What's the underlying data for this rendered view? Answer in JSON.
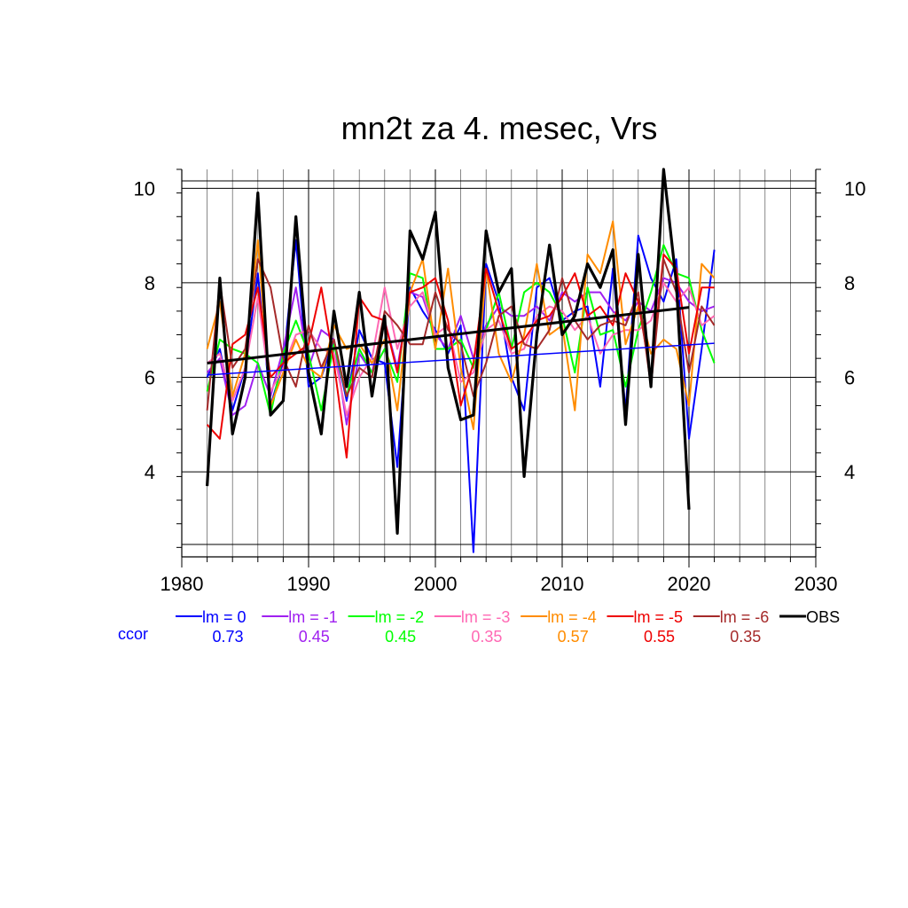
{
  "chart_data": {
    "type": "line",
    "title": "mn2t za 4. mesec, Vrs",
    "xlim": [
      1980,
      2030
    ],
    "ylim": [
      2.2,
      10.4
    ],
    "x_ticks": [
      1980,
      1990,
      2000,
      2010,
      2020,
      2030
    ],
    "y_ticks": [
      4,
      6,
      8,
      10
    ],
    "grid": true,
    "legend_placement": "bottom",
    "ccor_label": "ccor",
    "series": [
      {
        "name": "lm = 0",
        "ccor": "0.73",
        "color": "#0000ff",
        "x": [
          1982,
          1983,
          1984,
          1985,
          1986,
          1987,
          1988,
          1989,
          1990,
          1991,
          1992,
          1993,
          1994,
          1995,
          1996,
          1997,
          1998,
          1999,
          2000,
          2001,
          2002,
          2003,
          2004,
          2005,
          2006,
          2007,
          2008,
          2009,
          2010,
          2011,
          2012,
          2013,
          2014,
          2015,
          2016,
          2017,
          2018,
          2019,
          2020,
          2021,
          2022
        ],
        "y": [
          6.0,
          6.6,
          5.3,
          6.2,
          8.2,
          5.4,
          6.3,
          8.9,
          5.8,
          6.0,
          6.8,
          5.5,
          7.0,
          6.4,
          6.3,
          4.1,
          7.9,
          7.4,
          7.0,
          6.5,
          7.1,
          2.3,
          8.4,
          7.6,
          6.0,
          5.3,
          7.9,
          8.1,
          7.2,
          7.4,
          7.5,
          5.8,
          8.3,
          5.3,
          9.0,
          8.1,
          7.6,
          8.5,
          4.7,
          6.6,
          8.7
        ]
      },
      {
        "name": "lm = -1",
        "ccor": "0.45",
        "color": "#a020f0",
        "x": [
          1982,
          1983,
          1984,
          1985,
          1986,
          1987,
          1988,
          1989,
          1990,
          1991,
          1992,
          1993,
          1994,
          1995,
          1996,
          1997,
          1998,
          1999,
          2000,
          2001,
          2002,
          2003,
          2004,
          2005,
          2006,
          2007,
          2008,
          2009,
          2010,
          2011,
          2012,
          2013,
          2014,
          2015,
          2016,
          2017,
          2018,
          2019,
          2020,
          2021,
          2022
        ],
        "y": [
          6.1,
          6.4,
          5.2,
          5.4,
          6.3,
          5.6,
          6.6,
          7.9,
          6.2,
          7.0,
          6.8,
          5.0,
          6.5,
          6.1,
          7.2,
          6.2,
          7.8,
          7.7,
          6.9,
          6.6,
          7.3,
          6.4,
          7.1,
          7.5,
          7.3,
          7.3,
          7.5,
          7.2,
          7.8,
          7.6,
          7.8,
          7.8,
          7.4,
          7.2,
          7.6,
          7.4,
          8.1,
          8.0,
          7.6,
          7.4,
          7.5
        ]
      },
      {
        "name": "lm = -2",
        "ccor": "0.45",
        "color": "#00ff00",
        "x": [
          1982,
          1983,
          1984,
          1985,
          1986,
          1987,
          1988,
          1989,
          1990,
          1991,
          1992,
          1993,
          1994,
          1995,
          1996,
          1997,
          1998,
          1999,
          2000,
          2001,
          2002,
          2003,
          2004,
          2005,
          2006,
          2007,
          2008,
          2009,
          2010,
          2011,
          2012,
          2013,
          2014,
          2015,
          2016,
          2017,
          2018,
          2019,
          2020,
          2021,
          2022
        ],
        "y": [
          5.7,
          6.8,
          6.6,
          6.5,
          6.3,
          5.2,
          6.5,
          7.2,
          6.5,
          5.3,
          6.7,
          5.6,
          6.6,
          6.1,
          6.6,
          5.9,
          8.2,
          8.1,
          6.6,
          6.6,
          6.8,
          6.2,
          7.0,
          7.8,
          6.6,
          7.8,
          8.0,
          7.8,
          7.3,
          6.1,
          7.9,
          6.9,
          7.0,
          5.8,
          7.0,
          7.8,
          8.8,
          8.2,
          8.1,
          7.0,
          6.3
        ]
      },
      {
        "name": "lm = -3",
        "ccor": "0.35",
        "color": "#ff69b4",
        "x": [
          1982,
          1983,
          1984,
          1985,
          1986,
          1987,
          1988,
          1989,
          1990,
          1991,
          1992,
          1993,
          1994,
          1995,
          1996,
          1997,
          1998,
          1999,
          2000,
          2001,
          2002,
          2003,
          2004,
          2005,
          2006,
          2007,
          2008,
          2009,
          2010,
          2011,
          2012,
          2013,
          2014,
          2015,
          2016,
          2017,
          2018,
          2019,
          2020,
          2021,
          2022
        ],
        "y": [
          6.3,
          6.5,
          5.5,
          6.2,
          7.7,
          5.7,
          6.2,
          6.9,
          7.0,
          6.6,
          6.5,
          5.2,
          6.0,
          6.4,
          7.9,
          6.6,
          7.5,
          7.8,
          6.9,
          7.1,
          5.9,
          6.1,
          7.0,
          7.2,
          6.5,
          6.6,
          7.3,
          7.5,
          7.4,
          7.0,
          7.3,
          6.5,
          6.9,
          7.0,
          7.0,
          7.2,
          8.0,
          7.6,
          7.9,
          7.1,
          7.3
        ]
      },
      {
        "name": "lm = -4",
        "ccor": "0.57",
        "color": "#ff8c00",
        "x": [
          1982,
          1983,
          1984,
          1985,
          1986,
          1987,
          1988,
          1989,
          1990,
          1991,
          1992,
          1993,
          1994,
          1995,
          1996,
          1997,
          1998,
          1999,
          2000,
          2001,
          2002,
          2003,
          2004,
          2005,
          2006,
          2007,
          2008,
          2009,
          2010,
          2011,
          2012,
          2013,
          2014,
          2015,
          2016,
          2017,
          2018,
          2019,
          2020,
          2021,
          2022
        ],
        "y": [
          6.6,
          7.6,
          5.6,
          6.5,
          8.9,
          5.4,
          6.1,
          6.8,
          6.2,
          6.0,
          7.1,
          6.6,
          6.7,
          6.3,
          6.8,
          5.3,
          7.8,
          8.5,
          6.6,
          8.3,
          6.2,
          4.9,
          8.3,
          6.5,
          5.9,
          6.9,
          8.4,
          6.9,
          7.1,
          5.3,
          8.6,
          8.2,
          9.3,
          6.7,
          7.5,
          6.5,
          6.8,
          6.6,
          5.4,
          8.4,
          8.1
        ]
      },
      {
        "name": "lm = -5",
        "ccor": "0.55",
        "color": "#ee0000",
        "x": [
          1982,
          1983,
          1984,
          1985,
          1986,
          1987,
          1988,
          1989,
          1990,
          1991,
          1992,
          1993,
          1994,
          1995,
          1996,
          1997,
          1998,
          1999,
          2000,
          2001,
          2002,
          2003,
          2004,
          2005,
          2006,
          2007,
          2008,
          2009,
          2010,
          2011,
          2012,
          2013,
          2014,
          2015,
          2016,
          2017,
          2018,
          2019,
          2020,
          2021,
          2022
        ],
        "y": [
          5.0,
          4.7,
          6.7,
          6.9,
          7.9,
          6.0,
          6.3,
          6.5,
          6.7,
          7.9,
          6.3,
          4.3,
          7.7,
          7.3,
          7.2,
          6.1,
          7.8,
          7.9,
          8.1,
          7.2,
          5.4,
          6.3,
          8.3,
          7.4,
          6.6,
          6.8,
          7.2,
          7.3,
          7.7,
          8.2,
          7.3,
          7.5,
          7.1,
          8.2,
          7.6,
          6.0,
          8.6,
          8.3,
          6.5,
          7.9,
          7.9
        ]
      },
      {
        "name": "lm = -6",
        "ccor": "0.35",
        "color": "#a52a2a",
        "x": [
          1982,
          1983,
          1984,
          1985,
          1986,
          1987,
          1988,
          1989,
          1990,
          1991,
          1992,
          1993,
          1994,
          1995,
          1996,
          1997,
          1998,
          1999,
          2000,
          2001,
          2002,
          2003,
          2004,
          2005,
          2006,
          2007,
          2008,
          2009,
          2010,
          2011,
          2012,
          2013,
          2014,
          2015,
          2016,
          2017,
          2018,
          2019,
          2020,
          2021,
          2022
        ],
        "y": [
          5.3,
          8.0,
          6.2,
          6.6,
          8.5,
          7.9,
          6.4,
          5.8,
          7.1,
          6.2,
          6.8,
          5.6,
          6.2,
          6.0,
          7.4,
          7.1,
          6.7,
          6.7,
          7.8,
          7.0,
          6.7,
          5.6,
          6.3,
          7.3,
          7.5,
          6.7,
          6.6,
          7.0,
          8.1,
          7.2,
          6.8,
          7.1,
          7.2,
          7.1,
          7.8,
          5.8,
          8.5,
          7.8,
          6.1,
          7.5,
          7.1
        ]
      },
      {
        "name": "OBS",
        "ccor": "",
        "color": "#000000",
        "x": [
          1982,
          1983,
          1984,
          1985,
          1986,
          1987,
          1988,
          1989,
          1990,
          1991,
          1992,
          1993,
          1994,
          1995,
          1996,
          1997,
          1998,
          1999,
          2000,
          2001,
          2002,
          2003,
          2004,
          2005,
          2006,
          2007,
          2008,
          2009,
          2010,
          2011,
          2012,
          2013,
          2014,
          2015,
          2016,
          2017,
          2018,
          2019,
          2020
        ],
        "y": [
          3.7,
          8.1,
          4.8,
          6.0,
          9.9,
          5.2,
          5.5,
          9.4,
          6.1,
          4.8,
          7.4,
          5.8,
          7.8,
          5.6,
          7.3,
          2.7,
          9.1,
          8.5,
          9.5,
          6.2,
          5.1,
          5.2,
          9.1,
          7.8,
          8.3,
          3.9,
          6.9,
          8.8,
          6.9,
          7.3,
          8.4,
          7.9,
          8.7,
          5.0,
          8.6,
          5.8,
          10.4,
          8.0,
          3.2
        ]
      }
    ],
    "trend_lines": [
      {
        "series": "lm = 0",
        "color": "#0000ff",
        "x": [
          1982,
          2022
        ],
        "y": [
          6.05,
          6.72
        ]
      },
      {
        "series": "OBS",
        "color": "#000000",
        "x": [
          1982,
          2020
        ],
        "y": [
          6.3,
          7.48
        ]
      }
    ]
  }
}
